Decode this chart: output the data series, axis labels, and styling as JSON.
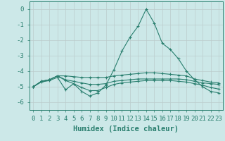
{
  "xlabel": "Humidex (Indice chaleur)",
  "x": [
    0,
    1,
    2,
    3,
    4,
    5,
    6,
    7,
    8,
    9,
    10,
    11,
    12,
    13,
    14,
    15,
    16,
    17,
    18,
    19,
    20,
    21,
    22,
    23
  ],
  "line1": [
    -5.0,
    -4.7,
    -4.6,
    -4.4,
    -5.2,
    -4.8,
    -5.3,
    -5.6,
    -5.4,
    -4.9,
    -3.9,
    -2.7,
    -1.8,
    -1.1,
    0.0,
    -0.9,
    -2.2,
    -2.6,
    -3.2,
    -4.0,
    -4.55,
    -5.0,
    -5.3,
    -5.4
  ],
  "line2": [
    -5.0,
    -4.65,
    -4.55,
    -4.3,
    -4.3,
    -4.35,
    -4.4,
    -4.4,
    -4.4,
    -4.4,
    -4.3,
    -4.25,
    -4.2,
    -4.15,
    -4.1,
    -4.1,
    -4.15,
    -4.2,
    -4.25,
    -4.3,
    -4.5,
    -4.6,
    -4.7,
    -4.75
  ],
  "line3": [
    -5.0,
    -4.65,
    -4.55,
    -4.3,
    -4.55,
    -4.65,
    -4.75,
    -4.85,
    -4.85,
    -4.8,
    -4.65,
    -4.6,
    -4.55,
    -4.5,
    -4.5,
    -4.5,
    -4.5,
    -4.5,
    -4.5,
    -4.55,
    -4.65,
    -4.75,
    -4.8,
    -4.85
  ],
  "line4": [
    -5.0,
    -4.65,
    -4.55,
    -4.3,
    -4.6,
    -4.8,
    -5.05,
    -5.25,
    -5.25,
    -5.05,
    -4.85,
    -4.75,
    -4.7,
    -4.65,
    -4.6,
    -4.6,
    -4.6,
    -4.6,
    -4.65,
    -4.7,
    -4.8,
    -4.9,
    -5.05,
    -5.15
  ],
  "bg_color": "#cce8e8",
  "grid_color": "#bbcccc",
  "line_color": "#2a7f6f",
  "ylim": [
    -6.5,
    0.5
  ],
  "xlim": [
    -0.5,
    23.5
  ],
  "yticks": [
    0,
    -1,
    -2,
    -3,
    -4,
    -5,
    -6
  ],
  "xticks": [
    0,
    1,
    2,
    3,
    4,
    5,
    6,
    7,
    8,
    9,
    10,
    11,
    12,
    13,
    14,
    15,
    16,
    17,
    18,
    19,
    20,
    21,
    22,
    23
  ],
  "tick_fontsize": 6.5,
  "xlabel_fontsize": 7.5,
  "marker": "+"
}
